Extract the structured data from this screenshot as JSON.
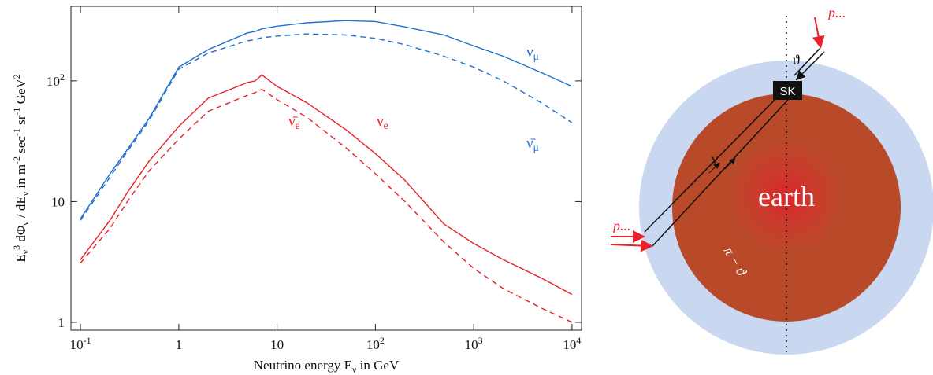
{
  "chart_data": {
    "type": "line",
    "x_label": "Neutrino energy  E_{ν}  in GeV",
    "y_label": "E_{ν}^{3} dΦ_{ν} / dE_{ν}  in m^{-2} sec^{-1} sr^{-1} GeV^{2}",
    "xlog": true,
    "ylog": true,
    "xlim": [
      0.08,
      12500
    ],
    "ylim": [
      0.86,
      415
    ],
    "xticks": [
      {
        "value": 0.1,
        "label": "10^{-1}"
      },
      1,
      10,
      {
        "value": 100,
        "label": "10^{2}"
      },
      {
        "value": 1000,
        "label": "10^{3}"
      },
      {
        "value": 10000,
        "label": "10^{4}"
      }
    ],
    "yticks": [
      1,
      10,
      {
        "value": 100,
        "label": "10^{2}"
      }
    ],
    "x": [
      0.1,
      0.2,
      0.3,
      0.5,
      1,
      2,
      5,
      6,
      7,
      10,
      20,
      50,
      100,
      200,
      500,
      1000,
      2000,
      5000,
      10000
    ],
    "series": [
      {
        "name": "ν_{μ}",
        "color": "#1f6fd1",
        "dash": false,
        "values": [
          7.2,
          17,
          27,
          49,
          130,
          182,
          250,
          257,
          270,
          284,
          303,
          316,
          310,
          280,
          240,
          195,
          160,
          116,
          90
        ]
      },
      {
        "name": "ν̄_{μ}",
        "color": "#1f6fd1",
        "dash": true,
        "values": [
          7,
          16,
          26,
          47,
          125,
          170,
          215,
          220,
          228,
          235,
          245,
          240,
          225,
          200,
          160,
          130,
          100,
          65,
          45
        ]
      },
      {
        "name": "ν_{e}",
        "color": "#e8202a",
        "dash": false,
        "values": [
          3.3,
          7,
          11.9,
          21.7,
          42,
          72,
          97,
          100,
          112,
          90,
          66,
          39.5,
          25,
          15,
          6.5,
          4.5,
          3.3,
          2.3,
          1.7
        ]
      },
      {
        "name": "ν̄_{e}",
        "color": "#e8202a",
        "dash": true,
        "values": [
          3.1,
          6,
          10,
          18,
          33,
          56,
          76,
          80,
          85,
          70,
          50,
          28,
          17,
          10,
          4.6,
          2.8,
          1.9,
          1.3,
          1.0
        ]
      }
    ]
  },
  "diagram": {
    "body": "earth",
    "detector": "SK",
    "zenith": "ϑ",
    "neutrino": "ν",
    "nadir_angle": "π − ϑ",
    "cosmic_ray_top": "p...",
    "cosmic_ray_side": "p..."
  }
}
